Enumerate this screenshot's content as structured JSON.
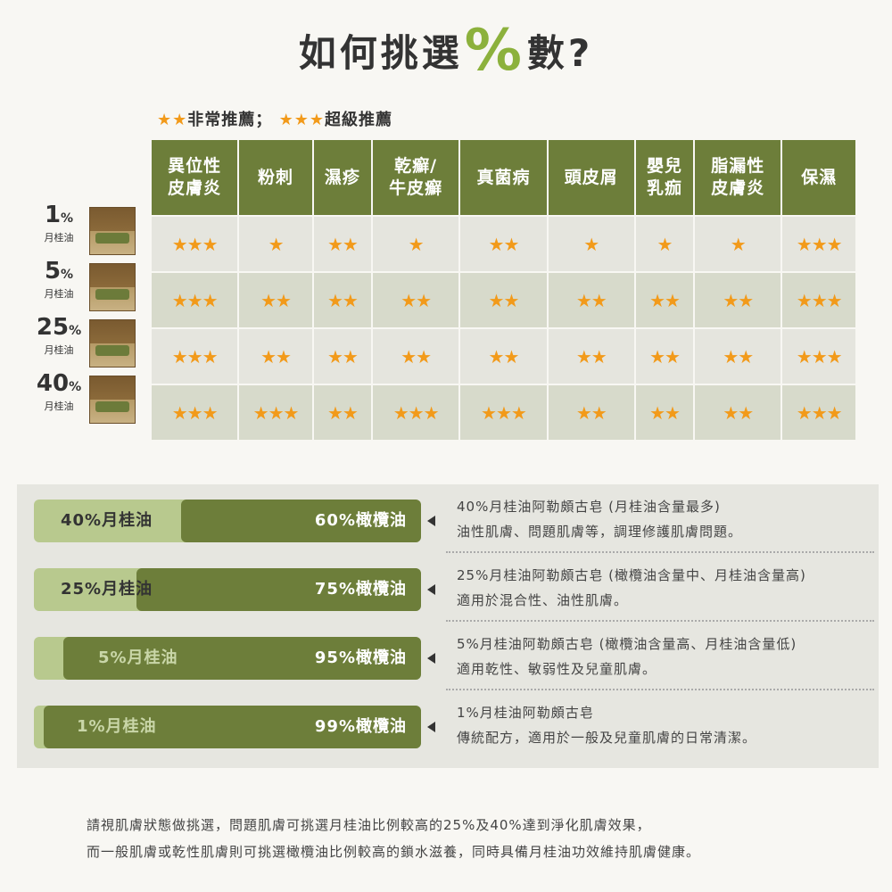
{
  "title": {
    "prefix": "如何挑選",
    "pct": "%",
    "suffix": "數?"
  },
  "legend": {
    "stars2": "★★",
    "label2": "非常推薦；",
    "stars3": "★★★",
    "label3": "超級推薦"
  },
  "table": {
    "headers": [
      {
        "l1": "異位性",
        "l2": "皮膚炎"
      },
      {
        "l1": "粉刺",
        "l2": ""
      },
      {
        "l1": "濕疹",
        "l2": ""
      },
      {
        "l1": "乾癬/",
        "l2": "牛皮癬"
      },
      {
        "l1": "真菌病",
        "l2": ""
      },
      {
        "l1": "頭皮屑",
        "l2": ""
      },
      {
        "l1": "嬰兒",
        "l2": "乳痂"
      },
      {
        "l1": "脂漏性",
        "l2": "皮膚炎"
      },
      {
        "l1": "保濕",
        "l2": ""
      }
    ],
    "rows": [
      {
        "num": "1",
        "pct": "%",
        "sub": "月桂油",
        "ratings": [
          3,
          1,
          2,
          1,
          2,
          1,
          1,
          1,
          3
        ]
      },
      {
        "num": "5",
        "pct": "%",
        "sub": "月桂油",
        "ratings": [
          3,
          2,
          2,
          2,
          2,
          2,
          2,
          2,
          3
        ]
      },
      {
        "num": "25",
        "pct": "%",
        "sub": "月桂油",
        "ratings": [
          3,
          2,
          2,
          2,
          2,
          2,
          2,
          2,
          3
        ]
      },
      {
        "num": "40",
        "pct": "%",
        "sub": "月桂油",
        "ratings": [
          3,
          3,
          2,
          3,
          3,
          2,
          2,
          2,
          3
        ]
      }
    ]
  },
  "options": [
    {
      "laurel_label": "40%月桂油",
      "laurel_pct": 40,
      "olive_label": "60%橄欖油",
      "desc1": "40%月桂油阿勒頗古皂 (月桂油含量最多)",
      "desc2": "油性肌膚、問題肌膚等，調理修護肌膚問題。"
    },
    {
      "laurel_label": "25%月桂油",
      "laurel_pct": 25,
      "olive_label": "75%橄欖油",
      "desc1": "25%月桂油阿勒頗古皂 (橄欖油含量中、月桂油含量高)",
      "desc2": "適用於混合性、油性肌膚。"
    },
    {
      "laurel_label": "5%月桂油",
      "laurel_pct": 5,
      "olive_label": "95%橄欖油",
      "desc1": "5%月桂油阿勒頗古皂 (橄欖油含量高、月桂油含量低)",
      "desc2": "適用乾性、敏弱性及兒童肌膚。"
    },
    {
      "laurel_label": "1%月桂油",
      "laurel_pct": 1,
      "olive_label": "99%橄欖油",
      "desc1": "1%月桂油阿勒頗古皂",
      "desc2": "傳統配方，適用於一般及兒童肌膚的日常清潔。"
    }
  ],
  "footer": {
    "line1": "請視肌膚狀態做挑選，問題肌膚可挑選月桂油比例較高的25%及40%達到淨化肌膚效果，",
    "line2": "而一般肌膚或乾性肌膚則可挑選橄欖油比例較高的鎖水滋養，同時具備月桂油功效維持肌膚健康。"
  },
  "colors": {
    "olive": "#6d7e3a",
    "light_green": "#b8c98e",
    "star": "#f29a1a",
    "accent": "#8cb13c"
  }
}
